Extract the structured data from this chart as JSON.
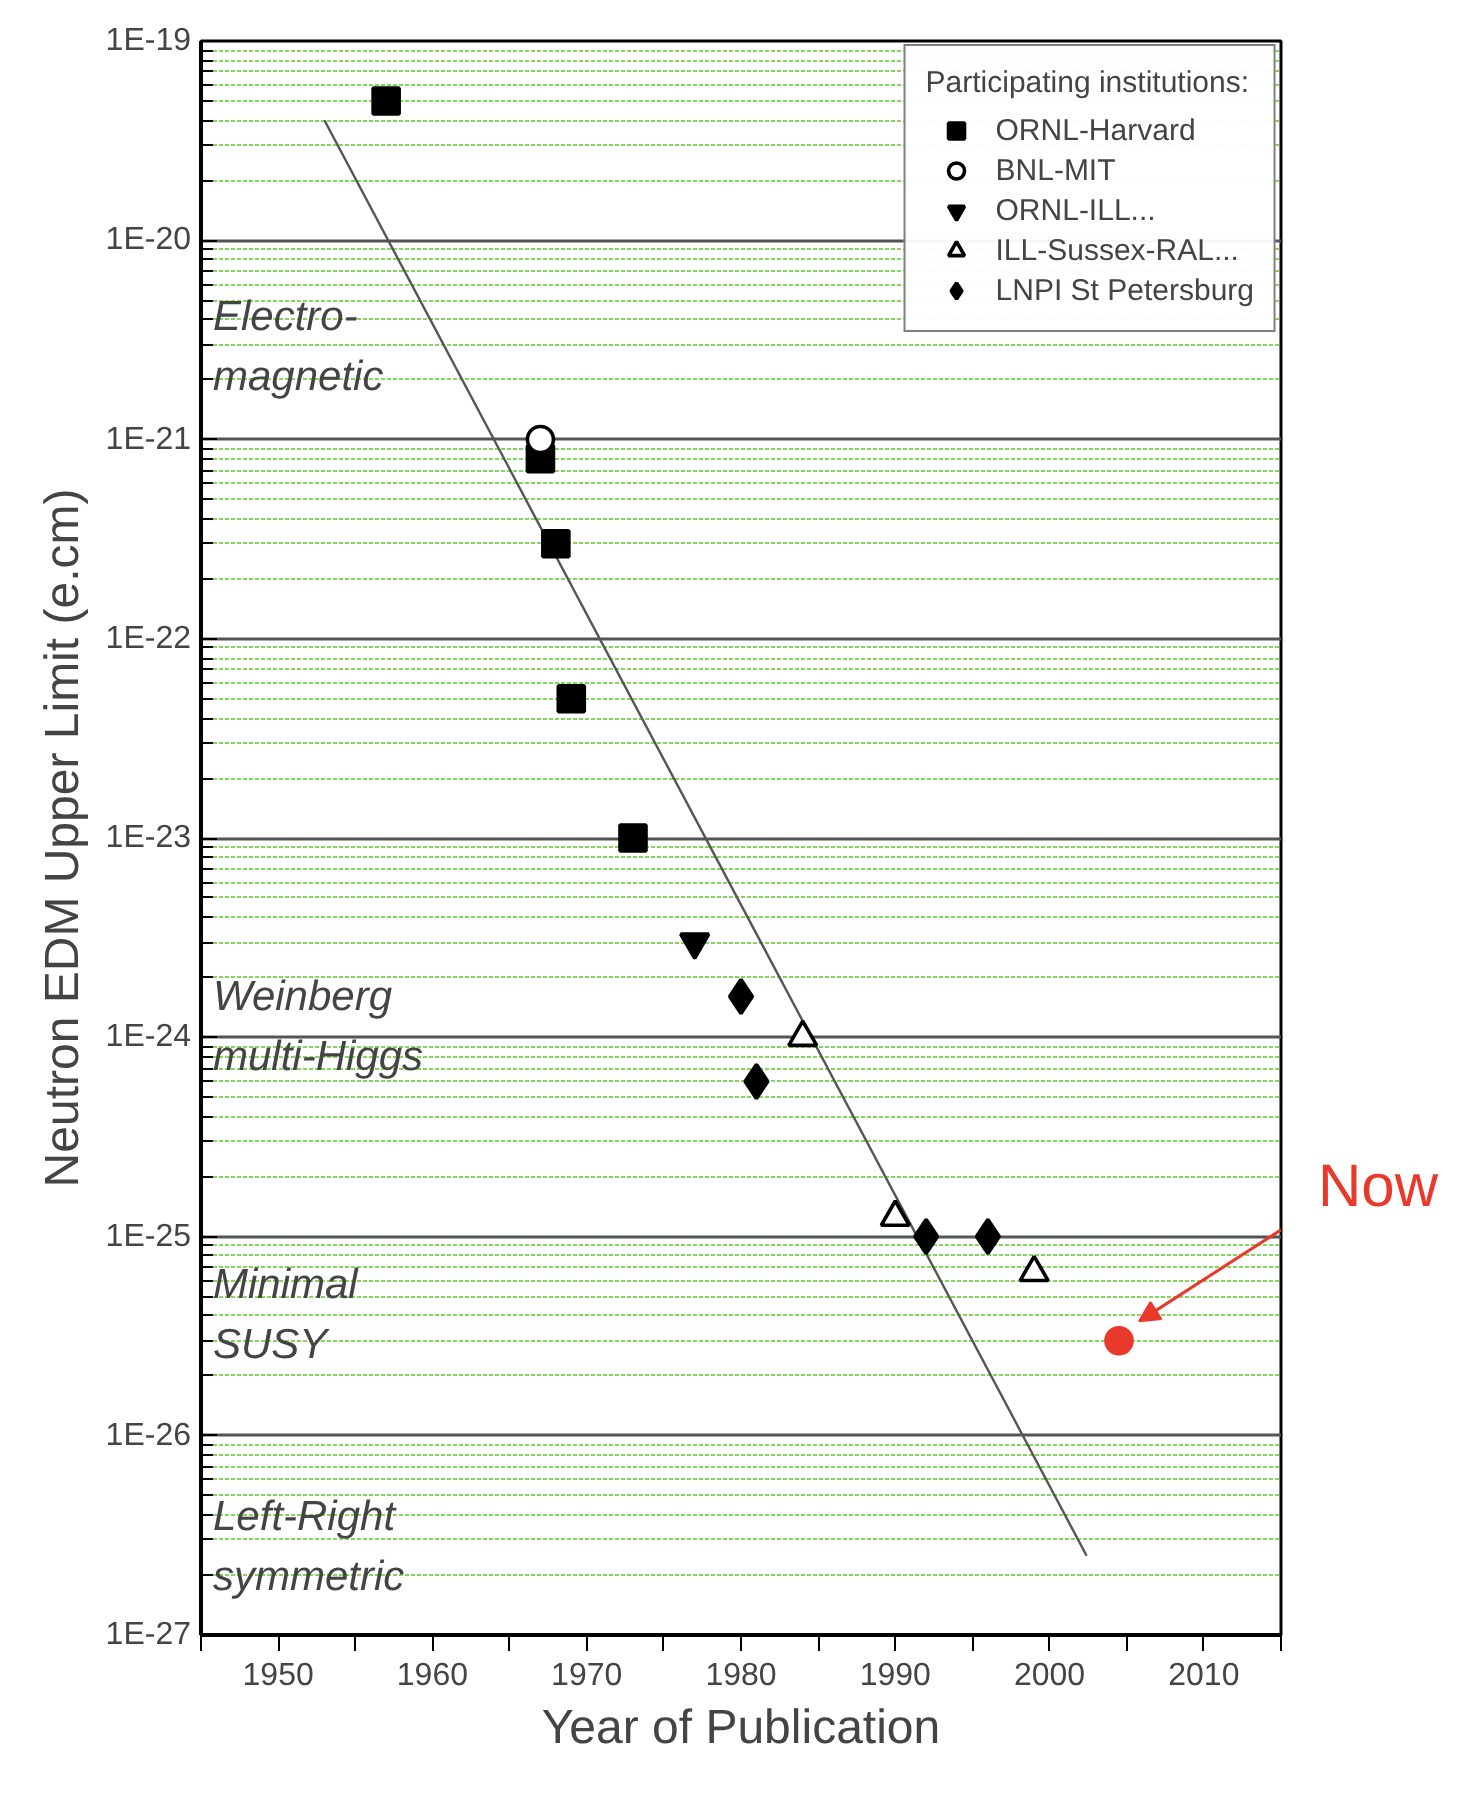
{
  "chart_data": {
    "type": "scatter",
    "xlabel": "Year of Publication",
    "ylabel": "Neutron EDM Upper Limit (e.cm)",
    "legend_title": "Participating institutions:",
    "xlim": [
      1945,
      2015
    ],
    "xticks": [
      1950,
      1960,
      1970,
      1980,
      1990,
      2000,
      2010,
      {
        "value": 1945,
        "label": null
      },
      {
        "value": 1955,
        "label": null
      },
      {
        "value": 1965,
        "label": null
      },
      {
        "value": 1975,
        "label": null
      },
      {
        "value": 1985,
        "label": null
      },
      {
        "value": 1995,
        "label": null
      },
      {
        "value": 2005,
        "label": null
      },
      {
        "value": 2015,
        "label": null
      }
    ],
    "ylim": [
      1e-27,
      1e-19
    ],
    "yticks": [
      {
        "value": 1e-27,
        "label": "1E-27"
      },
      {
        "value": 1e-26,
        "label": "1E-26"
      },
      {
        "value": 1e-25,
        "label": "1E-25"
      },
      {
        "value": 1e-24,
        "label": "1E-24"
      },
      {
        "value": 1e-23,
        "label": "1E-23"
      },
      {
        "value": 1e-22,
        "label": "1E-22"
      },
      {
        "value": 1e-21,
        "label": "1E-21"
      },
      {
        "value": 1e-20,
        "label": "1E-20"
      },
      {
        "value": 1e-19,
        "label": "1E-19"
      },
      {
        "value": 2e-27,
        "label": null
      },
      {
        "value": 3e-27,
        "label": null
      },
      {
        "value": 4e-27,
        "label": null
      },
      {
        "value": 5e-27,
        "label": null
      },
      {
        "value": 6e-27,
        "label": null
      },
      {
        "value": 7e-27,
        "label": null
      },
      {
        "value": 8e-27,
        "label": null
      },
      {
        "value": 9e-27,
        "label": null
      },
      {
        "value": 2e-26,
        "label": null
      },
      {
        "value": 3e-26,
        "label": null
      },
      {
        "value": 4e-26,
        "label": null
      },
      {
        "value": 5e-26,
        "label": null
      },
      {
        "value": 6e-26,
        "label": null
      },
      {
        "value": 7e-26,
        "label": null
      },
      {
        "value": 8e-26,
        "label": null
      },
      {
        "value": 9e-26,
        "label": null
      },
      {
        "value": 2e-25,
        "label": null
      },
      {
        "value": 3e-25,
        "label": null
      },
      {
        "value": 4e-25,
        "label": null
      },
      {
        "value": 5e-25,
        "label": null
      },
      {
        "value": 6e-25,
        "label": null
      },
      {
        "value": 7e-25,
        "label": null
      },
      {
        "value": 8e-25,
        "label": null
      },
      {
        "value": 9e-25,
        "label": null
      },
      {
        "value": 2e-24,
        "label": null
      },
      {
        "value": 3e-24,
        "label": null
      },
      {
        "value": 4e-24,
        "label": null
      },
      {
        "value": 5e-24,
        "label": null
      },
      {
        "value": 6e-24,
        "label": null
      },
      {
        "value": 7e-24,
        "label": null
      },
      {
        "value": 8e-24,
        "label": null
      },
      {
        "value": 9e-24,
        "label": null
      },
      {
        "value": 2e-23,
        "label": null
      },
      {
        "value": 3e-23,
        "label": null
      },
      {
        "value": 4e-23,
        "label": null
      },
      {
        "value": 5e-23,
        "label": null
      },
      {
        "value": 6e-23,
        "label": null
      },
      {
        "value": 7e-23,
        "label": null
      },
      {
        "value": 8e-23,
        "label": null
      },
      {
        "value": 9e-23,
        "label": null
      },
      {
        "value": 2e-22,
        "label": null
      },
      {
        "value": 3e-22,
        "label": null
      },
      {
        "value": 4e-22,
        "label": null
      },
      {
        "value": 5e-22,
        "label": null
      },
      {
        "value": 6e-22,
        "label": null
      },
      {
        "value": 7e-22,
        "label": null
      },
      {
        "value": 8e-22,
        "label": null
      },
      {
        "value": 9e-22,
        "label": null
      },
      {
        "value": 2e-21,
        "label": null
      },
      {
        "value": 3e-21,
        "label": null
      },
      {
        "value": 4e-21,
        "label": null
      },
      {
        "value": 5e-21,
        "label": null
      },
      {
        "value": 6e-21,
        "label": null
      },
      {
        "value": 7e-21,
        "label": null
      },
      {
        "value": 8e-21,
        "label": null
      },
      {
        "value": 9e-21,
        "label": null
      },
      {
        "value": 2e-20,
        "label": null
      },
      {
        "value": 3e-20,
        "label": null
      },
      {
        "value": 4e-20,
        "label": null
      },
      {
        "value": 5e-20,
        "label": null
      },
      {
        "value": 6e-20,
        "label": null
      },
      {
        "value": 7e-20,
        "label": null
      },
      {
        "value": 8e-20,
        "label": null
      },
      {
        "value": 9e-20,
        "label": null
      }
    ],
    "log": "y",
    "grid": "y",
    "legend": "top right",
    "series": [
      {
        "type": "line",
        "color": "#555555",
        "x": [
          1953,
          2002.4
        ],
        "values": [
          4e-20,
          2.5e-27
        ],
        "marker": "none"
      },
      {
        "name": "ORNL-Harvard",
        "color": "#000000",
        "marker": "square",
        "x": [
          1957,
          1967,
          1968,
          1969,
          1973
        ],
        "values": [
          5e-20,
          8e-22,
          3e-22,
          5e-23,
          1e-23
        ]
      },
      {
        "name": "BNL-MIT",
        "color": "#000000",
        "marker": "circle",
        "x": [
          1967
        ],
        "values": [
          1e-21
        ]
      },
      {
        "name": "ORNL-ILL...",
        "color": "#000000",
        "marker": "triangle",
        "x": [
          1977
        ],
        "values": [
          3e-24
        ]
      },
      {
        "name": "ILL-Sussex-RAL...",
        "color": "#000000",
        "marker": "triangle",
        "x": [
          1984,
          1990,
          1999
        ],
        "values": [
          1e-24,
          1.25e-25,
          6.6e-26
        ]
      },
      {
        "name": "LNPI St Petersburg",
        "color": "#000000",
        "marker": "diamond",
        "x": [
          1980,
          1981,
          1992,
          1996
        ],
        "values": [
          1.6e-24,
          6e-25,
          1e-25,
          1e-25
        ]
      },
      {
        "color": "#e8392a",
        "marker": "circle",
        "x": [
          2004.5
        ],
        "values": [
          3e-26
        ]
      }
    ],
    "annotations": [
      "Electro-\n magnetic",
      "Weinberg\n multi-Higgs",
      "Minimal\n  SUSY",
      "Left-Right\n symmetric",
      "Now"
    ]
  }
}
